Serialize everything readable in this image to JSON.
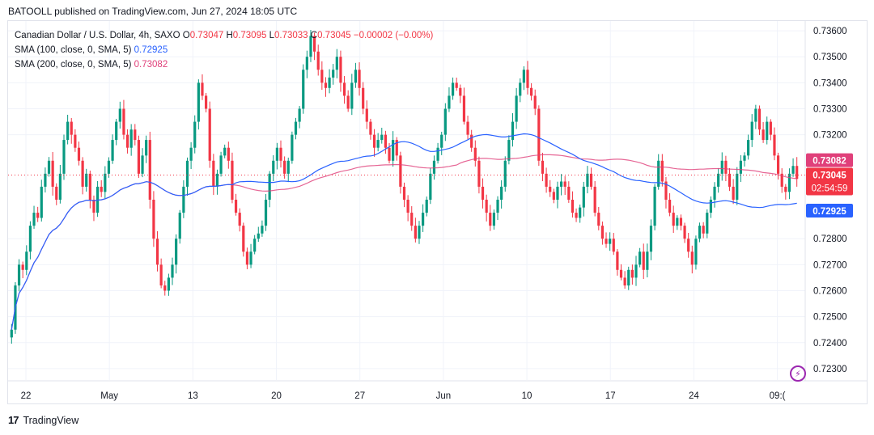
{
  "publish_line": "BATOOLL published on TradingView.com, Jun 27, 2024 18:05 UTC",
  "legend": {
    "symbol": "Canadian Dollar / U.S. Dollar, 4h, SAXO",
    "o_key": "O",
    "o_val": "0.73047",
    "h_key": "H",
    "h_val": "0.73095",
    "l_key": "L",
    "l_val": "0.73033",
    "c_key": "C",
    "c_val": "0.73045",
    "change": "−0.00002 (−0.00%)",
    "sma100_label": "SMA (100, close, 0, SMA, 5)",
    "sma100_val": "0.72925",
    "sma200_label": "SMA (200, close, 0, SMA, 5)",
    "sma200_val": "0.73082"
  },
  "footer": {
    "logo_text": "TradingView",
    "mark": "17"
  },
  "colors": {
    "up": "#089981",
    "down": "#f23645",
    "sma100": "#2962ff",
    "sma200": "#e0407a",
    "grid": "#f0f3fa",
    "axis_text": "#131722"
  },
  "chart_data": {
    "type": "line",
    "ylim": [
      0.7225,
      0.7365
    ],
    "y_ticks": [
      "0.73600",
      "0.73500",
      "0.73400",
      "0.73300",
      "0.73200",
      "0.72800",
      "0.72700",
      "0.72600",
      "0.72500",
      "0.72400",
      "0.72300"
    ],
    "x_ticks": [
      "22",
      "May",
      "13",
      "20",
      "27",
      "Jun",
      "10",
      "17",
      "24",
      "09:("
    ],
    "price_labels": {
      "sma200": "0.73082",
      "last": "0.73045",
      "countdown": "02:54:59",
      "sma100": "0.72925"
    },
    "closes": [
      0.7245,
      0.7262,
      0.727,
      0.7268,
      0.7275,
      0.7285,
      0.729,
      0.7288,
      0.73,
      0.7305,
      0.731,
      0.73,
      0.7295,
      0.7305,
      0.7318,
      0.7325,
      0.732,
      0.7315,
      0.731,
      0.73,
      0.7305,
      0.7295,
      0.729,
      0.73,
      0.7298,
      0.7305,
      0.731,
      0.7318,
      0.7325,
      0.733,
      0.732,
      0.7315,
      0.7322,
      0.7318,
      0.7305,
      0.7312,
      0.7318,
      0.7295,
      0.728,
      0.727,
      0.7262,
      0.726,
      0.7265,
      0.727,
      0.728,
      0.729,
      0.73,
      0.731,
      0.7315,
      0.7325,
      0.734,
      0.7335,
      0.733,
      0.731,
      0.73,
      0.7305,
      0.7312,
      0.7315,
      0.731,
      0.7295,
      0.729,
      0.7285,
      0.7275,
      0.727,
      0.7275,
      0.728,
      0.7282,
      0.7285,
      0.7295,
      0.7305,
      0.731,
      0.7315,
      0.731,
      0.7305,
      0.731,
      0.732,
      0.7325,
      0.733,
      0.7345,
      0.735,
      0.7358,
      0.7352,
      0.7345,
      0.734,
      0.7338,
      0.7342,
      0.7345,
      0.735,
      0.734,
      0.7335,
      0.733,
      0.734,
      0.7345,
      0.7338,
      0.733,
      0.7325,
      0.732,
      0.7315,
      0.7318,
      0.732,
      0.7315,
      0.731,
      0.7318,
      0.7312,
      0.73,
      0.7295,
      0.729,
      0.7285,
      0.728,
      0.7285,
      0.729,
      0.7295,
      0.7305,
      0.731,
      0.7315,
      0.732,
      0.733,
      0.7335,
      0.734,
      0.7338,
      0.7335,
      0.7325,
      0.732,
      0.7315,
      0.731,
      0.73,
      0.7295,
      0.729,
      0.7285,
      0.729,
      0.7295,
      0.73,
      0.731,
      0.7318,
      0.7325,
      0.7335,
      0.734,
      0.7345,
      0.7338,
      0.7335,
      0.733,
      0.731,
      0.7305,
      0.73,
      0.7298,
      0.7295,
      0.73,
      0.7302,
      0.73,
      0.7295,
      0.729,
      0.7288,
      0.7292,
      0.73,
      0.7305,
      0.73,
      0.729,
      0.7285,
      0.728,
      0.7278,
      0.728,
      0.7275,
      0.7268,
      0.7265,
      0.7262,
      0.7268,
      0.7265,
      0.727,
      0.7275,
      0.7268,
      0.7275,
      0.7285,
      0.73,
      0.731,
      0.7302,
      0.7295,
      0.729,
      0.7285,
      0.7288,
      0.7285,
      0.728,
      0.7275,
      0.727,
      0.728,
      0.7285,
      0.7282,
      0.729,
      0.7295,
      0.73,
      0.7305,
      0.731,
      0.7305,
      0.73,
      0.7295,
      0.7305,
      0.731,
      0.7312,
      0.7318,
      0.7325,
      0.733,
      0.7322,
      0.7318,
      0.7325,
      0.732,
      0.7312,
      0.7305,
      0.73,
      0.7298,
      0.7305,
      0.7308,
      0.7303
    ]
  }
}
